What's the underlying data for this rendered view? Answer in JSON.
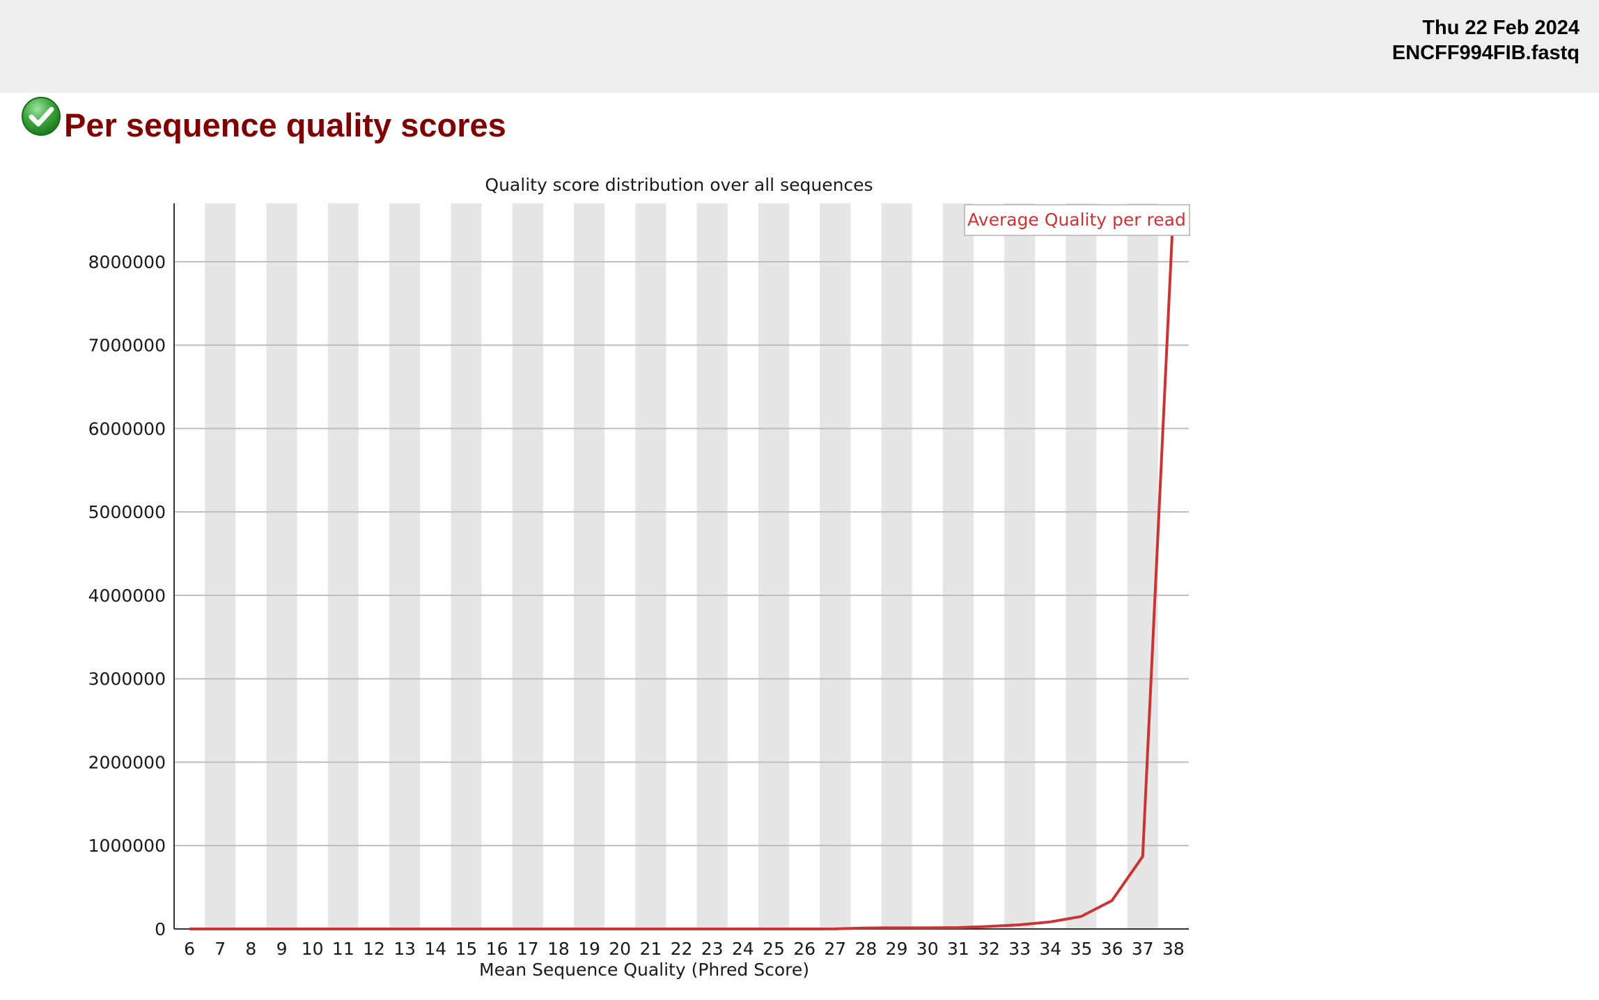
{
  "header": {
    "date": "Thu 22 Feb 2024",
    "filename": "ENCFF994FIB.fastq"
  },
  "section": {
    "title": "Per sequence quality scores",
    "status_icon": "pass-check-icon",
    "status_color": "#3aa53a"
  },
  "chart_data": {
    "type": "line",
    "title": "Quality score distribution over all sequences",
    "xlabel": "Mean Sequence Quality (Phred Score)",
    "ylabel": "",
    "categories": [
      "6",
      "7",
      "8",
      "9",
      "10",
      "11",
      "12",
      "13",
      "14",
      "15",
      "16",
      "17",
      "18",
      "19",
      "20",
      "21",
      "22",
      "23",
      "24",
      "25",
      "26",
      "27",
      "28",
      "29",
      "30",
      "31",
      "32",
      "33",
      "34",
      "35",
      "36",
      "37",
      "38"
    ],
    "x": [
      6,
      7,
      8,
      9,
      10,
      11,
      12,
      13,
      14,
      15,
      16,
      17,
      18,
      19,
      20,
      21,
      22,
      23,
      24,
      25,
      26,
      27,
      28,
      29,
      30,
      31,
      32,
      33,
      34,
      35,
      36,
      37,
      38
    ],
    "series": [
      {
        "name": "Average Quality per read",
        "color": "#cc3333",
        "values": [
          0,
          0,
          0,
          0,
          0,
          0,
          0,
          0,
          0,
          0,
          0,
          0,
          0,
          0,
          0,
          0,
          0,
          0,
          0,
          0,
          0,
          1000,
          12000,
          14000,
          14000,
          17000,
          30000,
          50000,
          85000,
          150000,
          340000,
          870000,
          8650000
        ]
      }
    ],
    "yticks": [
      0,
      1000000,
      2000000,
      3000000,
      4000000,
      5000000,
      6000000,
      7000000,
      8000000
    ],
    "ytick_labels": [
      "0",
      "1000000",
      "2000000",
      "3000000",
      "4000000",
      "5000000",
      "6000000",
      "7000000",
      "8000000"
    ],
    "ylim": [
      0,
      8700000
    ],
    "xlim": [
      5.5,
      38.5
    ],
    "grid": "horizontal",
    "alternating_bands": true,
    "band_color": "#e6e6e6",
    "legend_placement": "top-right"
  }
}
